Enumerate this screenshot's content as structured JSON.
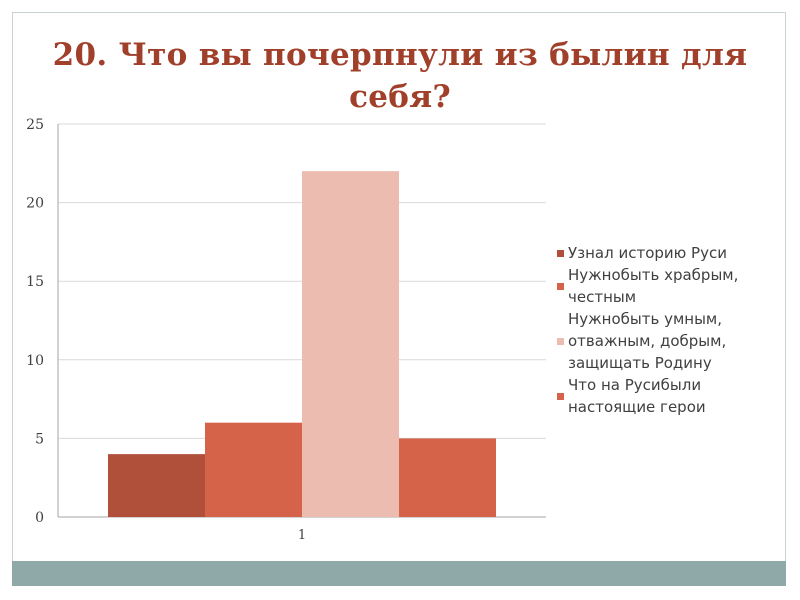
{
  "title": "20. Что вы почерпнули из былин для себя?",
  "chart_data": {
    "type": "bar",
    "categories": [
      "1"
    ],
    "series": [
      {
        "name": "Узнал историю Руси",
        "values": [
          4
        ],
        "color": "#b0503a"
      },
      {
        "name": "Нужнобыть храбрым, честным",
        "values": [
          6
        ],
        "color": "#d5634a"
      },
      {
        "name": "Нужнобыть умным, отважным, добрым, защищать Родину",
        "values": [
          22
        ],
        "color": "#ecbcb0"
      },
      {
        "name": "Что на Русибыли настоящие герои",
        "values": [
          5
        ],
        "color": "#d5634a"
      }
    ],
    "yticks": [
      "0",
      "5",
      "10",
      "15",
      "20",
      "25"
    ],
    "ylim": [
      0,
      25
    ],
    "grid": true,
    "legend_position": "right",
    "legend_lines": [
      [
        "Узнал историю Руси"
      ],
      [
        "Нужнобыть храбрым,",
        "честным"
      ],
      [
        "Нужнобыть умным,",
        "отважным, добрым,",
        "защищать Родину"
      ],
      [
        "Что на Русибыли",
        "настоящие герои"
      ]
    ]
  },
  "colors": {
    "title": "#a0402a",
    "footer_band": "#8fa9a9",
    "grid": "#d9d9d9"
  }
}
